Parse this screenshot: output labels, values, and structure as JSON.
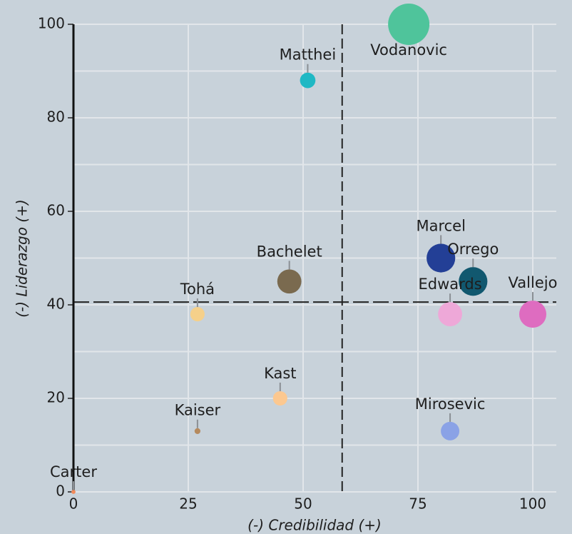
{
  "chart_data": {
    "type": "scatter",
    "x_label": "(-) Credibilidad (+)",
    "y_label": "(-) Liderazgo (+)",
    "labels": [
      "Vodanovic",
      "Matthei",
      "Marcel",
      "Orrego",
      "Bachelet",
      "Tohá",
      "Edwards",
      "Vallejo",
      "Kast",
      "Kaiser",
      "Mirosevic",
      "Carter"
    ],
    "x": [
      73,
      51,
      80,
      87,
      47,
      27,
      82,
      100,
      45,
      27,
      82,
      0
    ],
    "y": [
      100,
      88,
      50,
      45,
      45,
      38,
      38,
      38,
      20,
      13,
      13,
      0
    ],
    "sizes": [
      100,
      14,
      48,
      48,
      34,
      12,
      34,
      43,
      12,
      2,
      20,
      1
    ],
    "colors": [
      "#4fc49b",
      "#1fb8c4",
      "#233f96",
      "#11586f",
      "#7a6a4f",
      "#f5d08a",
      "#eea8d8",
      "#de6cc0",
      "#fcc890",
      "#b58a5e",
      "#8aa2e6",
      "#f28a5a"
    ],
    "xlim": [
      0,
      105
    ],
    "ylim": [
      0,
      100
    ],
    "xticks": [
      0,
      25,
      50,
      75,
      100
    ],
    "yticks": [
      0,
      20,
      40,
      60,
      80,
      100
    ],
    "y_minor_ticks": [
      10,
      30,
      50,
      70,
      90
    ],
    "grid": true,
    "reference_lines": {
      "x": 58.5,
      "y": 40.6
    }
  }
}
